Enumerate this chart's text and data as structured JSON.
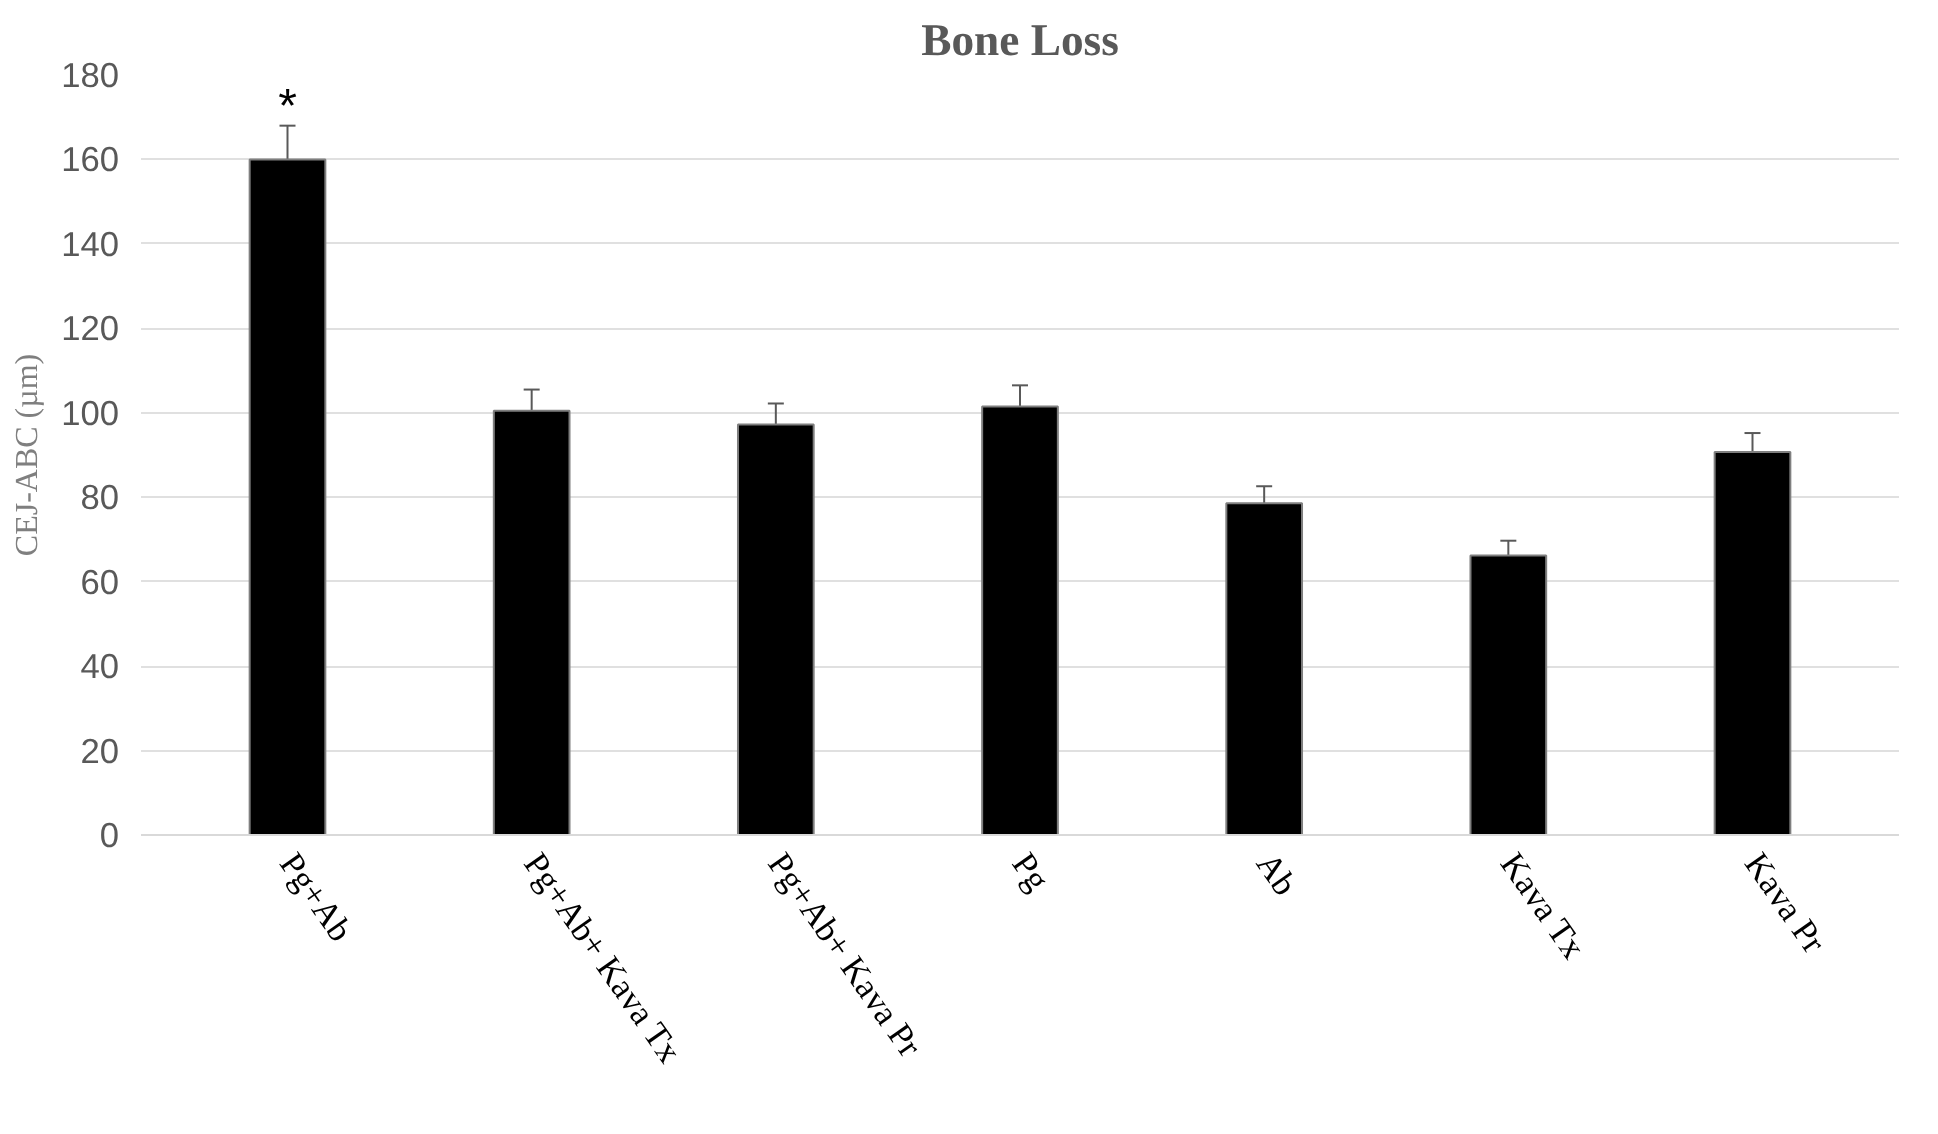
{
  "chart_data": {
    "type": "bar",
    "title": "Bone Loss",
    "ylabel": "CEJ-ABC (µm)",
    "categories": [
      "Pg+Ab",
      "Pg+Ab+ Kava Tx",
      "Pg+Ab+ Kava Pr",
      "Pg",
      "Ab",
      "Kava Tx",
      "Kava Pr"
    ],
    "values": [
      160,
      100.5,
      97.2,
      101.5,
      78.6,
      66.2,
      90.7
    ],
    "errors": [
      8,
      5,
      5,
      5,
      4,
      3.5,
      4.5
    ],
    "color": "#000000",
    "ylim": [
      0,
      180
    ],
    "yticks": [
      0,
      20,
      40,
      60,
      80,
      100,
      120,
      140,
      160,
      180
    ],
    "grid": "y",
    "annotations": [
      {
        "text": "*",
        "x": "Pg+Ab",
        "y": 168
      }
    ]
  }
}
